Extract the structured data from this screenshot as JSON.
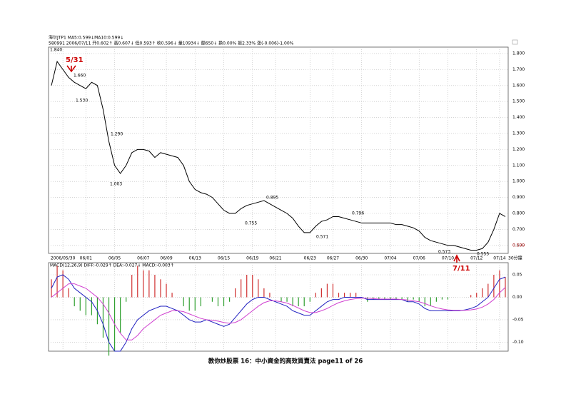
{
  "chart_data": [
    {
      "type": "line",
      "color": "#000000",
      "header": [
        "海尔JTP1  MA5:0.599↓MA10:0.599↓",
        "580991 2006/07/11 开0.602↑ 高0.607↓ 低0.593↑ 收0.596↓ 量10934↓ 额650↓ 换0.00% 振2.33% 涨(-0.006)-1.00%"
      ],
      "period": "30分鐘",
      "categories": [
        null,
        null,
        "2006/05/30",
        null,
        null,
        null,
        "06/01",
        null,
        null,
        null,
        null,
        "06/05",
        null,
        null,
        null,
        null,
        "06/07",
        null,
        null,
        null,
        "06/09",
        null,
        null,
        null,
        null,
        "06/13",
        null,
        null,
        null,
        null,
        "06/15",
        null,
        null,
        null,
        null,
        "06/19",
        null,
        null,
        null,
        "06/21",
        null,
        null,
        null,
        null,
        null,
        "06/23",
        null,
        null,
        null,
        "06/27",
        null,
        null,
        null,
        null,
        "06/30",
        null,
        null,
        null,
        null,
        "07/04",
        null,
        null,
        null,
        null,
        "07/06",
        null,
        null,
        null,
        null,
        "07/10",
        null,
        null,
        null,
        null,
        "07/12",
        null,
        null,
        null,
        "07/14",
        null
      ],
      "values": [
        1.6,
        1.75,
        1.7,
        1.65,
        1.62,
        1.6,
        1.58,
        1.62,
        1.6,
        1.45,
        1.25,
        1.1,
        1.05,
        1.1,
        1.18,
        1.2,
        1.2,
        1.19,
        1.15,
        1.18,
        1.17,
        1.16,
        1.15,
        1.1,
        1.0,
        0.95,
        0.93,
        0.92,
        0.9,
        0.86,
        0.82,
        0.8,
        0.8,
        0.83,
        0.85,
        0.86,
        0.87,
        0.88,
        0.86,
        0.84,
        0.82,
        0.8,
        0.77,
        0.72,
        0.68,
        0.68,
        0.72,
        0.75,
        0.76,
        0.78,
        0.78,
        0.77,
        0.76,
        0.75,
        0.74,
        0.74,
        0.74,
        0.74,
        0.74,
        0.74,
        0.73,
        0.73,
        0.72,
        0.71,
        0.69,
        0.65,
        0.63,
        0.62,
        0.61,
        0.6,
        0.6,
        0.59,
        0.58,
        0.57,
        0.57,
        0.58,
        0.62,
        0.7,
        0.8,
        0.78
      ],
      "ylim": [
        0.55,
        1.84
      ],
      "yticks": [
        {
          "value": 0.6,
          "label": "0.600"
        },
        {
          "value": 0.7,
          "label": "0.700"
        },
        {
          "value": 0.8,
          "label": "0.800"
        },
        {
          "value": 0.9,
          "label": "0.900"
        },
        {
          "value": 1.0,
          "label": "1.000"
        },
        {
          "value": 1.1,
          "label": "1.100"
        },
        {
          "value": 1.2,
          "label": "1.200"
        },
        {
          "value": 1.3,
          "label": "1.300"
        },
        {
          "value": 1.4,
          "label": "1.400"
        },
        {
          "value": 1.5,
          "label": "1.500"
        },
        {
          "value": 1.6,
          "label": "1.600"
        },
        {
          "value": 1.7,
          "label": "1.700"
        },
        {
          "value": 1.8,
          "label": "1.800"
        }
      ],
      "current": {
        "value": 0.599,
        "label": "0.599"
      },
      "annotations": [
        "1.840",
        "1.660",
        "1.530",
        "1.290",
        "1.003",
        "0.755",
        "0.895",
        "0.571",
        "0.796",
        "0.573",
        "0.555",
        "5/31",
        "7/11"
      ],
      "grid": true
    },
    {
      "type": "bar",
      "header": "MACD(12,26,9) DIFF:-0.029↑ DEA:-0.027↓ MACD:-0.003↑",
      "up_color": "#d03030",
      "down_color": "#30a030",
      "values": [
        0.04,
        0.07,
        0.06,
        0.02,
        -0.02,
        -0.03,
        -0.04,
        -0.04,
        -0.06,
        -0.09,
        -0.13,
        -0.12,
        -0.08,
        -0.01,
        0.05,
        0.07,
        0.06,
        0.06,
        0.05,
        0.04,
        0.03,
        0.01,
        0.0,
        -0.02,
        -0.03,
        -0.03,
        -0.02,
        0.0,
        -0.01,
        -0.02,
        -0.02,
        -0.01,
        0.02,
        0.04,
        0.05,
        0.05,
        0.04,
        0.02,
        0.01,
        0.0,
        -0.01,
        -0.01,
        -0.02,
        -0.02,
        -0.02,
        -0.01,
        0.01,
        0.02,
        0.03,
        0.03,
        0.01,
        0.01,
        0.01,
        0.01,
        0.0,
        -0.01,
        -0.005,
        -0.005,
        -0.005,
        -0.005,
        -0.005,
        -0.005,
        -0.01,
        -0.005,
        -0.01,
        -0.02,
        -0.02,
        -0.01,
        -0.005,
        -0.005,
        0.0,
        0.0,
        0.0,
        0.005,
        0.01,
        0.02,
        0.03,
        0.05,
        0.06,
        0.045
      ],
      "lines": [
        {
          "color": "#2020c0",
          "values": [
            0.02,
            0.045,
            0.05,
            0.04,
            0.02,
            0.01,
            0.0,
            -0.01,
            -0.03,
            -0.06,
            -0.1,
            -0.12,
            -0.12,
            -0.1,
            -0.07,
            -0.05,
            -0.04,
            -0.03,
            -0.025,
            -0.02,
            -0.02,
            -0.025,
            -0.03,
            -0.04,
            -0.05,
            -0.055,
            -0.055,
            -0.05,
            -0.055,
            -0.06,
            -0.065,
            -0.06,
            -0.045,
            -0.03,
            -0.015,
            -0.005,
            0.0,
            0.0,
            -0.005,
            -0.01,
            -0.015,
            -0.02,
            -0.03,
            -0.035,
            -0.04,
            -0.04,
            -0.03,
            -0.02,
            -0.01,
            -0.005,
            -0.005,
            0.0,
            0.0,
            0.0,
            0.0,
            -0.005,
            -0.005,
            -0.005,
            -0.005,
            -0.005,
            -0.005,
            -0.005,
            -0.01,
            -0.01,
            -0.015,
            -0.025,
            -0.03,
            -0.03,
            -0.03,
            -0.03,
            -0.03,
            -0.03,
            -0.028,
            -0.025,
            -0.02,
            -0.01,
            0.0,
            0.02,
            0.04,
            0.045
          ]
        },
        {
          "color": "#d040d0",
          "values": [
            0.0,
            0.01,
            0.02,
            0.03,
            0.03,
            0.025,
            0.02,
            0.01,
            0.0,
            -0.015,
            -0.035,
            -0.06,
            -0.08,
            -0.095,
            -0.095,
            -0.085,
            -0.07,
            -0.06,
            -0.05,
            -0.04,
            -0.035,
            -0.03,
            -0.03,
            -0.032,
            -0.037,
            -0.042,
            -0.047,
            -0.05,
            -0.051,
            -0.053,
            -0.056,
            -0.058,
            -0.056,
            -0.05,
            -0.04,
            -0.03,
            -0.02,
            -0.012,
            -0.008,
            -0.008,
            -0.01,
            -0.013,
            -0.018,
            -0.024,
            -0.03,
            -0.034,
            -0.034,
            -0.03,
            -0.025,
            -0.018,
            -0.012,
            -0.008,
            -0.005,
            -0.003,
            -0.002,
            -0.002,
            -0.003,
            -0.004,
            -0.004,
            -0.004,
            -0.004,
            -0.005,
            -0.006,
            -0.008,
            -0.01,
            -0.014,
            -0.019,
            -0.023,
            -0.026,
            -0.028,
            -0.029,
            -0.029,
            -0.029,
            -0.028,
            -0.026,
            -0.022,
            -0.015,
            -0.005,
            0.01,
            0.022
          ]
        }
      ],
      "ylim": [
        -0.12,
        0.077
      ],
      "yticks": [
        {
          "value": 0.05,
          "label": "0.05"
        },
        {
          "value": 0,
          "label": "0.00"
        },
        {
          "value": -0.05,
          "label": "-0.05"
        },
        {
          "value": -0.1,
          "label": "-0.10"
        }
      ],
      "grid": true
    }
  ],
  "footer": "教你炒股票 16：中小資金的高效買賣法      page11 of 26"
}
